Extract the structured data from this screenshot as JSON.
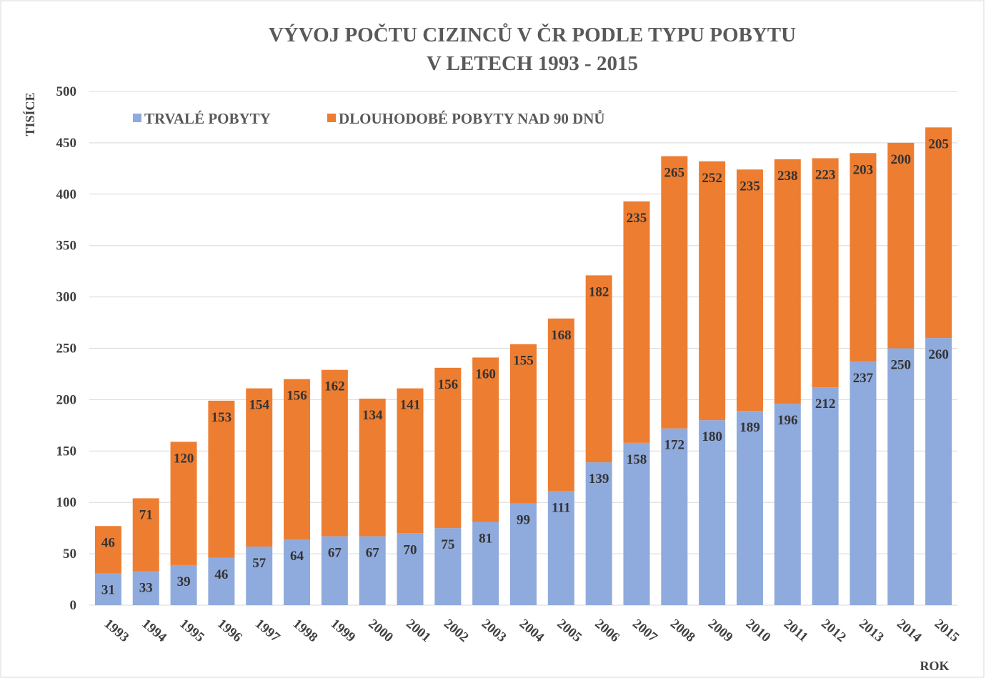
{
  "chart_data": {
    "type": "stacked_bar",
    "title": [
      "VÝVOJ POČTU CIZINCŮ V ČR PODLE TYPU POBYTU",
      "V LETECH 1993 - 2015"
    ],
    "y_axis_label": "TISÍCE",
    "x_axis_label": "ROK",
    "categories": [
      "1993",
      "1994",
      "1995",
      "1996",
      "1997",
      "1998",
      "1999",
      "2000",
      "2001",
      "2002",
      "2003",
      "2004",
      "2005",
      "2006",
      "2007",
      "2008",
      "2009",
      "2010",
      "2011",
      "2012",
      "2013",
      "2014",
      "2015"
    ],
    "series": [
      {
        "name": "TRVALÉ POBYTY",
        "color": "#8faadc",
        "values": [
          31,
          33,
          39,
          46,
          57,
          64,
          67,
          67,
          70,
          75,
          81,
          99,
          111,
          139,
          158,
          172,
          180,
          189,
          196,
          212,
          237,
          250,
          260
        ]
      },
      {
        "name": "DLOUHODOBÉ POBYTY NAD 90 DNŮ",
        "color": "#ed7d31",
        "values": [
          46,
          71,
          120,
          153,
          154,
          156,
          162,
          134,
          141,
          156,
          160,
          155,
          168,
          182,
          235,
          265,
          252,
          235,
          238,
          223,
          203,
          200,
          205
        ]
      }
    ],
    "ylim": [
      0,
      500
    ],
    "yticks": [
      0,
      50,
      100,
      150,
      200,
      250,
      300,
      350,
      400,
      450,
      500
    ],
    "grid": true,
    "legend": "top"
  }
}
